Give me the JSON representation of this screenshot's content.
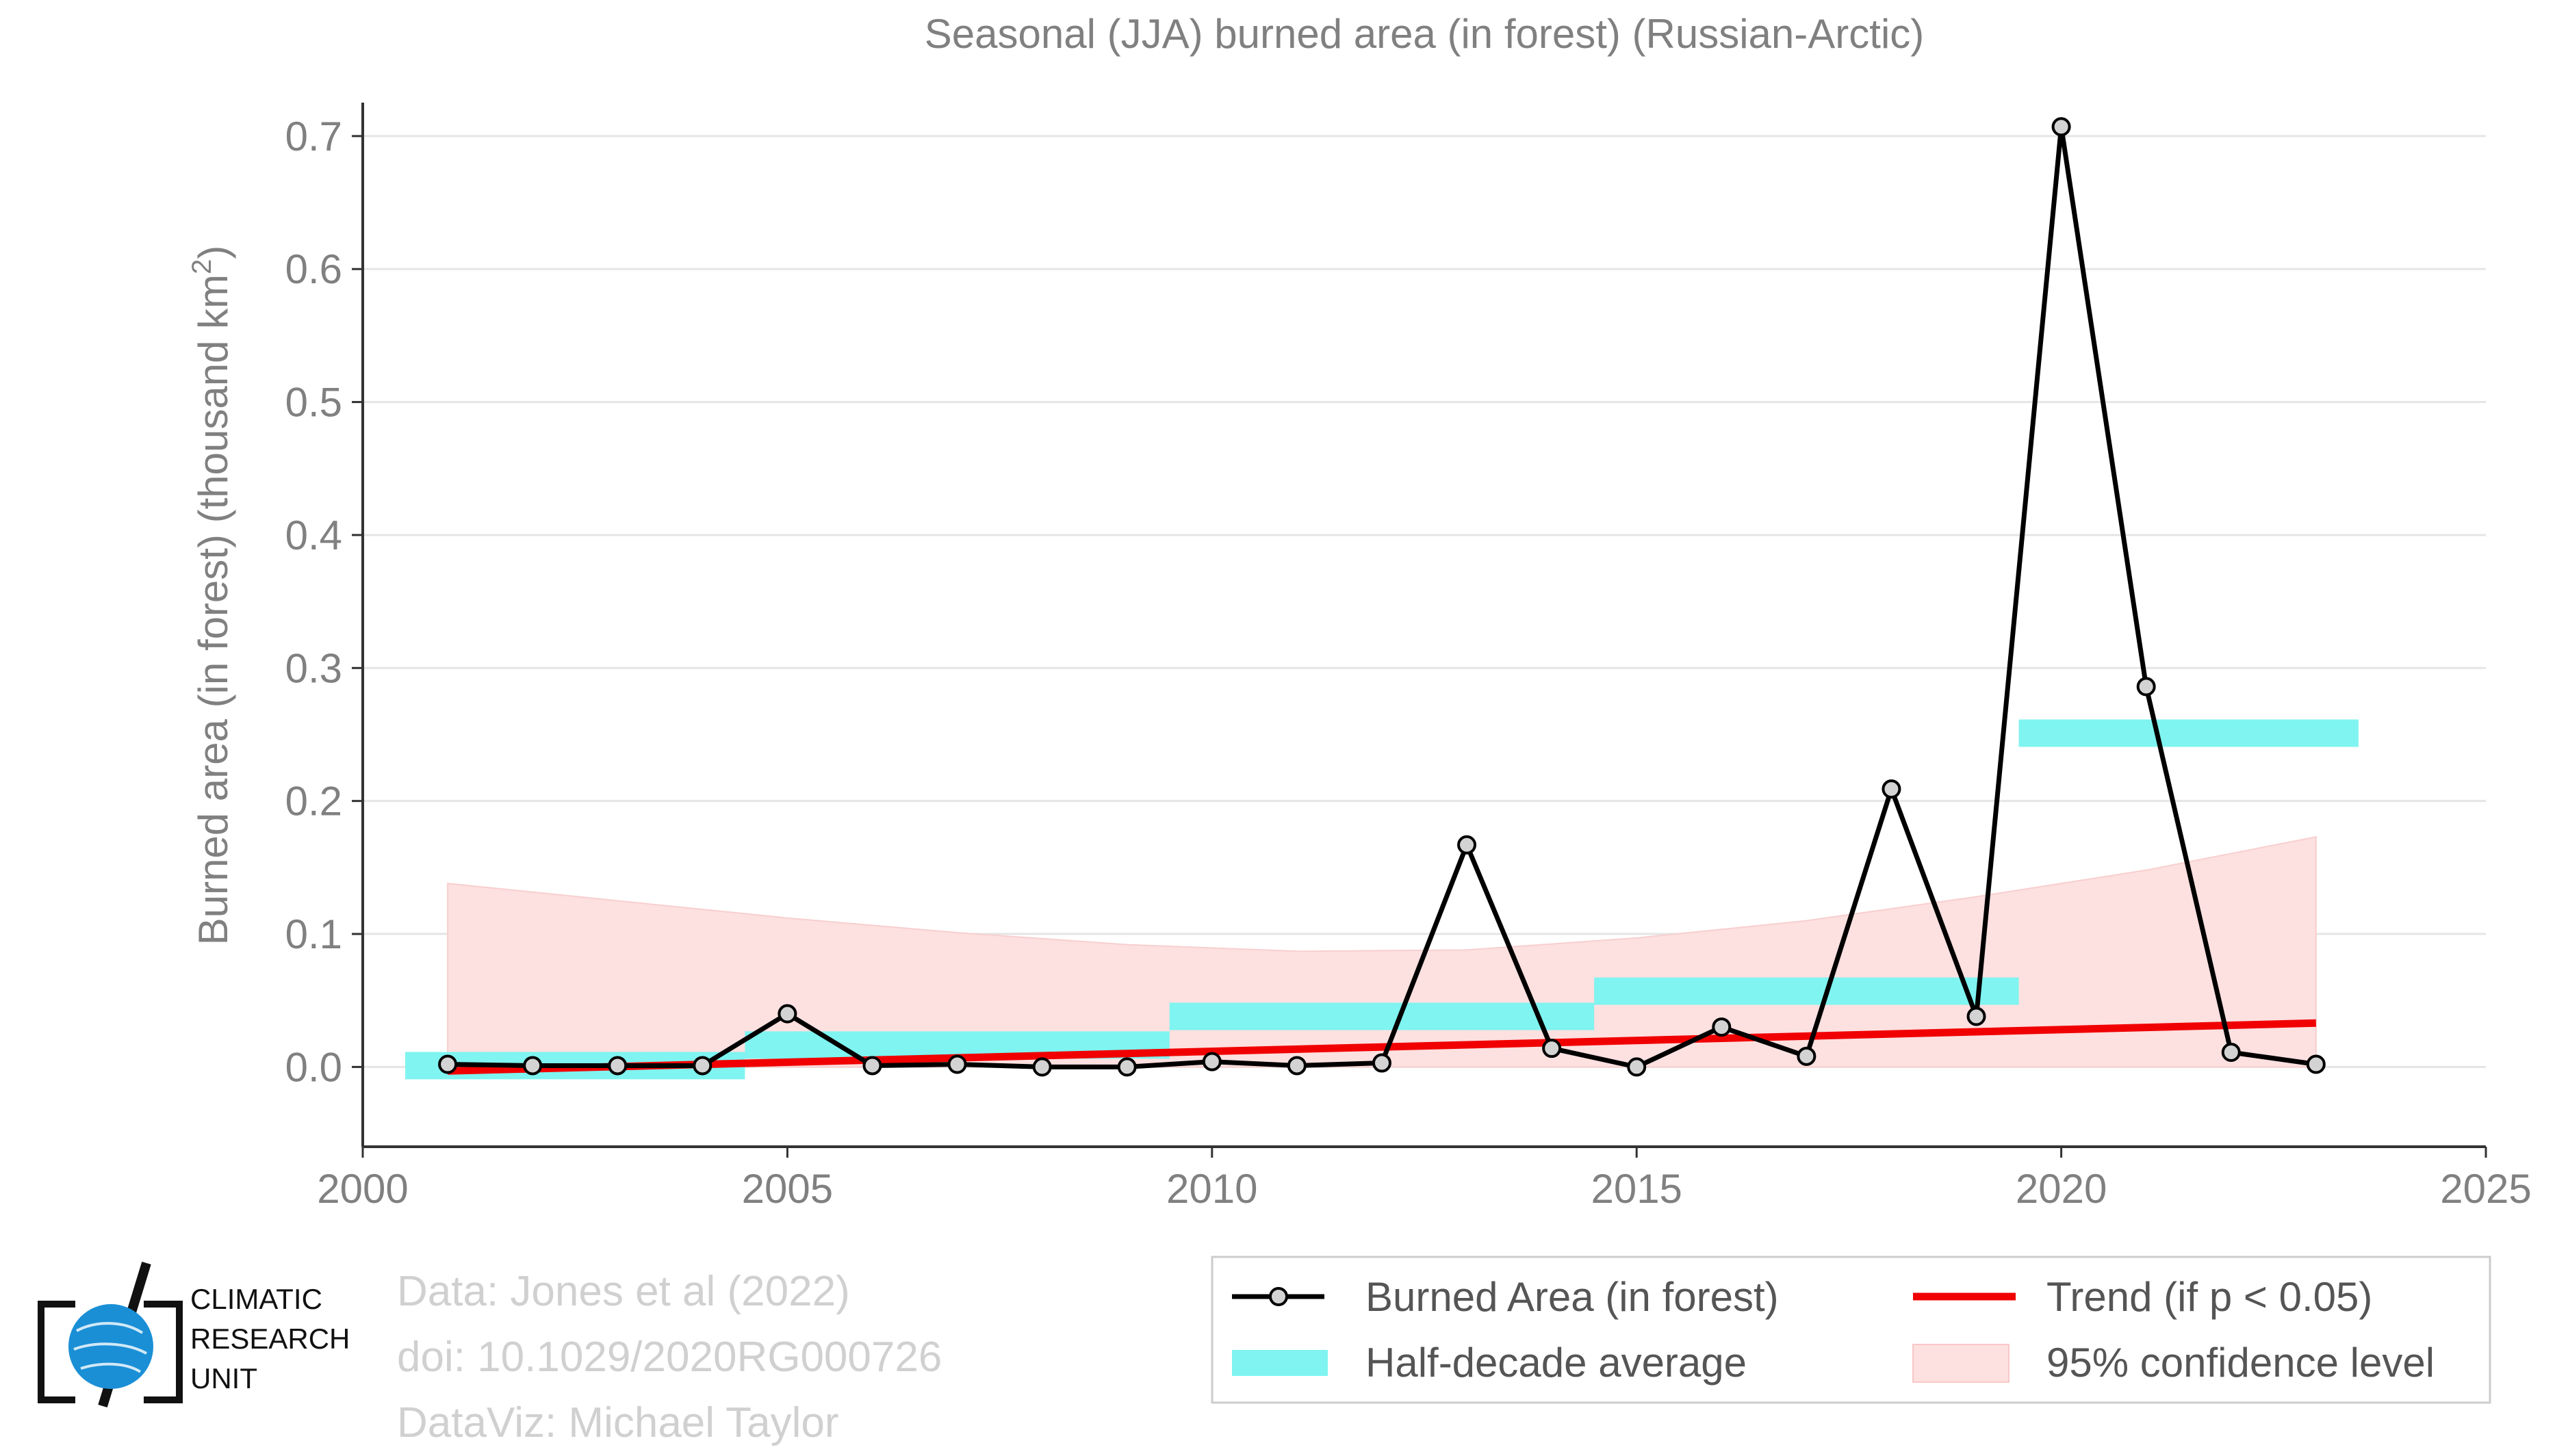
{
  "chart_data": {
    "type": "line",
    "title": "Seasonal (JJA) burned area (in forest) (Russian-Arctic)",
    "ylabel_main": "Burned area (in forest) (thousand km",
    "ylabel_sup": "2",
    "ylabel_close": ")",
    "xlim": [
      2000,
      2025
    ],
    "ylim": [
      -0.06,
      0.72
    ],
    "x_ticks": [
      2000,
      2005,
      2010,
      2015,
      2020,
      2025
    ],
    "y_ticks": [
      0.0,
      0.1,
      0.2,
      0.3,
      0.4,
      0.5,
      0.6,
      0.7
    ],
    "y_tick_labels": [
      "0.0",
      "0.1",
      "0.2",
      "0.3",
      "0.4",
      "0.5",
      "0.6",
      "0.7"
    ],
    "grid": "horizontal",
    "legend_position": "bottom-right",
    "series": [
      {
        "name": "Burned Area (in forest)",
        "kind": "line-markers",
        "color": "#000000",
        "marker_fill": "#d3d3d3",
        "x": [
          2001,
          2002,
          2003,
          2004,
          2005,
          2006,
          2007,
          2008,
          2009,
          2010,
          2011,
          2012,
          2013,
          2014,
          2015,
          2016,
          2017,
          2018,
          2019,
          2020,
          2021,
          2022,
          2023
        ],
        "y": [
          0.002,
          0.001,
          0.001,
          0.001,
          0.04,
          0.001,
          0.002,
          0.0,
          0.0,
          0.004,
          0.001,
          0.003,
          0.167,
          0.014,
          0.0,
          0.03,
          0.008,
          0.209,
          0.038,
          0.707,
          0.286,
          0.011,
          0.002
        ]
      },
      {
        "name": "Half-decade average",
        "kind": "bars",
        "color": "#7ff4f0",
        "segments": [
          {
            "x0": 2000.5,
            "x1": 2004.5,
            "y": 0.001
          },
          {
            "x0": 2004.5,
            "x1": 2009.5,
            "y": 0.0165
          },
          {
            "x0": 2009.5,
            "x1": 2014.5,
            "y": 0.038
          },
          {
            "x0": 2014.5,
            "x1": 2019.5,
            "y": 0.057
          },
          {
            "x0": 2019.5,
            "x1": 2023.5,
            "y": 0.251
          }
        ]
      },
      {
        "name": "Trend (if p < 0.05)",
        "kind": "line",
        "color": "#f00000",
        "x": [
          2001,
          2023
        ],
        "y": [
          -0.003,
          0.033
        ]
      },
      {
        "name": "95% confidence level",
        "kind": "band",
        "color": "#fde0e0",
        "x": [
          2001,
          2003,
          2005,
          2007,
          2009,
          2011,
          2013,
          2015,
          2017,
          2019,
          2021,
          2023
        ],
        "upper": [
          0.138,
          0.125,
          0.112,
          0.101,
          0.092,
          0.087,
          0.088,
          0.097,
          0.11,
          0.128,
          0.148,
          0.173
        ],
        "lower": [
          0,
          0,
          0,
          0,
          0,
          0,
          0,
          0,
          0,
          0,
          0,
          0
        ]
      }
    ],
    "legend_items": [
      {
        "label": "Burned Area (in forest)",
        "kind": "line-markers"
      },
      {
        "label": "Trend (if p < 0.05)",
        "kind": "line"
      },
      {
        "label": "Half-decade average",
        "kind": "bars"
      },
      {
        "label": "95% confidence level",
        "kind": "band"
      }
    ]
  },
  "credits": {
    "line1": "Data: Jones et al (2022)",
    "line2": "doi: 10.1029/2020RG000726",
    "line3": "DataViz: Michael Taylor"
  },
  "logo": {
    "line1": "CLIMATIC",
    "line2": "RESEARCH",
    "line3": "UNIT",
    "icon": "globe-icon",
    "color": "#1a8fd6"
  }
}
